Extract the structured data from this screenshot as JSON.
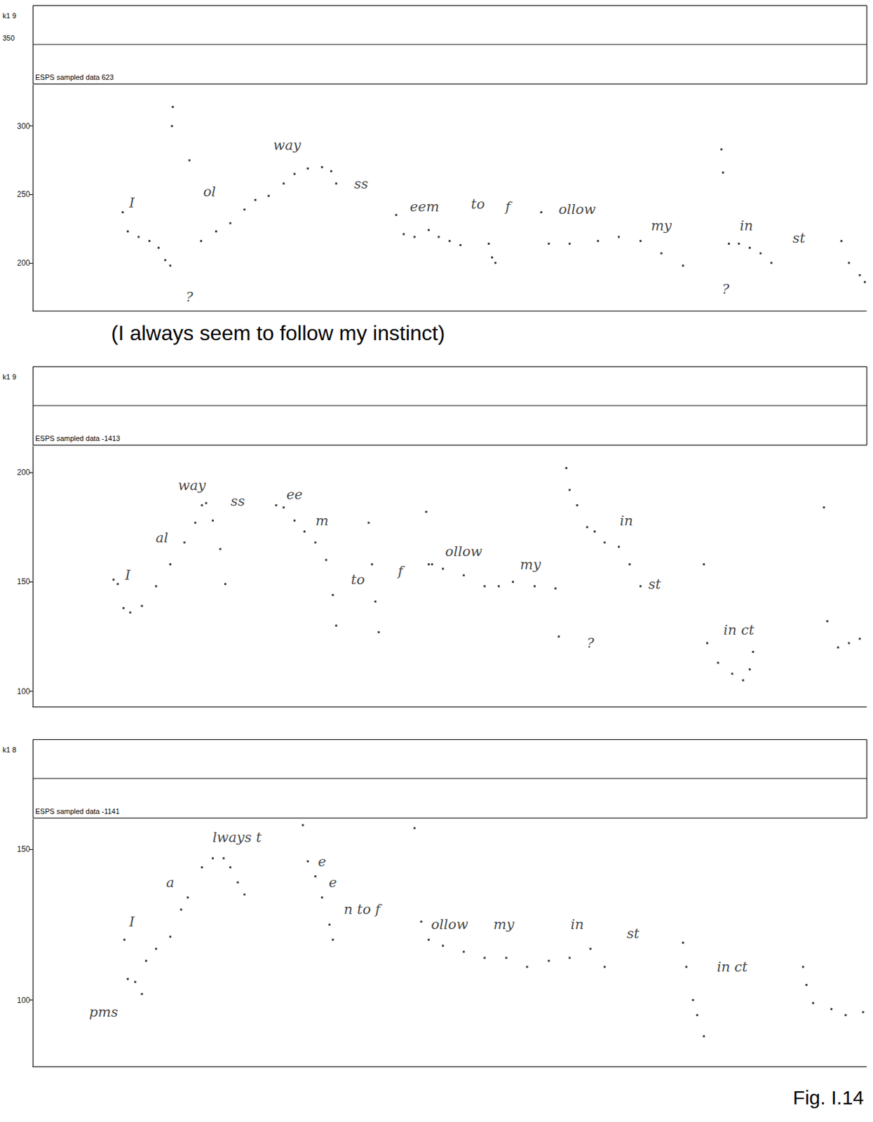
{
  "figure_label": "Fig. I.14",
  "chart_data": [
    {
      "type": "scatter",
      "waveform_label": "ESPS sampled data 623",
      "channel_label": "k1 9",
      "waveform_scale": 350,
      "caption": "(I always seem to follow my instinct)",
      "xlim": [
        0,
        100
      ],
      "ylim": [
        165,
        330
      ],
      "yticks": [
        200,
        250,
        300
      ],
      "tick_labels": "y",
      "grid": false,
      "marker": "square",
      "color": "#000000",
      "x": [
        10.8,
        11.4,
        12.7,
        14.0,
        15.1,
        15.9,
        16.5,
        16.7,
        16.8,
        18.8,
        20.2,
        22.0,
        23.7,
        25.4,
        26.7,
        28.3,
        30.1,
        31.4,
        33.0,
        34.7,
        35.8,
        36.4,
        43.6,
        44.5,
        45.8,
        47.5,
        48.7,
        50.0,
        51.3,
        54.7,
        55.1,
        55.5,
        61.0,
        61.9,
        64.4,
        67.8,
        70.3,
        72.9,
        75.4,
        78.0,
        82.6,
        82.8,
        83.5,
        84.7,
        86.0,
        87.3,
        88.6,
        97.0,
        97.9,
        99.2,
        99.8
      ],
      "values": [
        237,
        223,
        219,
        216,
        211,
        202,
        198,
        300,
        314,
        275,
        216,
        223,
        229,
        239,
        246,
        249,
        258,
        265,
        269,
        270,
        267,
        258,
        235,
        221,
        219,
        224,
        219,
        216,
        213,
        214,
        204,
        200,
        237,
        214,
        214,
        216,
        219,
        216,
        207,
        198,
        283,
        266,
        214,
        214,
        211,
        207,
        200,
        216,
        200,
        191,
        186
      ],
      "annotations": [
        {
          "text": "I",
          "x": 11.9,
          "y": 244
        },
        {
          "text": "?",
          "x": 18.8,
          "y": 175
        },
        {
          "text": "ol",
          "x": 21.2,
          "y": 252
        },
        {
          "text": "way",
          "x": 30.5,
          "y": 286
        },
        {
          "text": "ss",
          "x": 39.4,
          "y": 258
        },
        {
          "text": "eem",
          "x": 47.0,
          "y": 241
        },
        {
          "text": "to",
          "x": 53.4,
          "y": 243
        },
        {
          "text": "f",
          "x": 57.0,
          "y": 241
        },
        {
          "text": "ollow",
          "x": 65.3,
          "y": 239
        },
        {
          "text": "my",
          "x": 75.4,
          "y": 227
        },
        {
          "text": "?",
          "x": 83.1,
          "y": 181
        },
        {
          "text": "in",
          "x": 85.6,
          "y": 227
        },
        {
          "text": "st",
          "x": 91.9,
          "y": 218
        }
      ]
    },
    {
      "type": "scatter",
      "waveform_label": "ESPS sampled data -1413",
      "channel_label": "k1 9",
      "xlim": [
        0,
        100
      ],
      "ylim": [
        93,
        212
      ],
      "yticks": [
        100,
        150,
        200
      ],
      "tick_labels": "y",
      "grid": false,
      "marker": "square",
      "color": "#000000",
      "x": [
        9.7,
        10.2,
        10.9,
        11.7,
        13.1,
        14.8,
        16.5,
        18.2,
        19.5,
        20.3,
        20.8,
        21.6,
        22.5,
        23.1,
        29.2,
        30.1,
        31.4,
        32.6,
        33.9,
        35.2,
        36.0,
        36.4,
        40.3,
        40.7,
        41.1,
        41.5,
        47.2,
        47.5,
        47.9,
        49.2,
        51.7,
        54.2,
        55.9,
        57.6,
        60.2,
        62.7,
        63.1,
        64.0,
        64.4,
        65.3,
        66.5,
        67.4,
        68.6,
        70.3,
        71.6,
        72.9,
        80.5,
        80.9,
        82.2,
        83.9,
        85.2,
        86.0,
        86.4,
        94.9,
        95.3,
        96.6,
        97.9,
        99.2
      ],
      "values": [
        151,
        149,
        138,
        136,
        139,
        148,
        158,
        168,
        177,
        185,
        186,
        178,
        165,
        149,
        185,
        184,
        178,
        173,
        168,
        160,
        144,
        130,
        177,
        158,
        141,
        127,
        182,
        158,
        158,
        156,
        153,
        148,
        148,
        150,
        148,
        147,
        125,
        202,
        192,
        185,
        175,
        173,
        168,
        166,
        158,
        148,
        158,
        122,
        113,
        108,
        105,
        110,
        118,
        184,
        132,
        120,
        122,
        124
      ],
      "annotations": [
        {
          "text": "I",
          "x": 11.4,
          "y": 153
        },
        {
          "text": "al",
          "x": 15.5,
          "y": 170
        },
        {
          "text": "way",
          "x": 19.1,
          "y": 194
        },
        {
          "text": "ss",
          "x": 24.6,
          "y": 187
        },
        {
          "text": "ee",
          "x": 31.4,
          "y": 190
        },
        {
          "text": "m",
          "x": 34.7,
          "y": 178
        },
        {
          "text": "to",
          "x": 39.0,
          "y": 151
        },
        {
          "text": "f",
          "x": 44.1,
          "y": 155
        },
        {
          "text": "ollow",
          "x": 51.7,
          "y": 164
        },
        {
          "text": "my",
          "x": 59.7,
          "y": 158
        },
        {
          "text": "in",
          "x": 71.2,
          "y": 178
        },
        {
          "text": "st",
          "x": 74.6,
          "y": 149
        },
        {
          "text": "?",
          "x": 66.9,
          "y": 122
        },
        {
          "text": "in ct",
          "x": 84.7,
          "y": 128
        }
      ]
    },
    {
      "type": "scatter",
      "waveform_label": "ESPS sampled data -1141",
      "channel_label": "k1 8",
      "xlim": [
        0,
        100
      ],
      "ylim": [
        78,
        160
      ],
      "yticks": [
        100,
        150
      ],
      "tick_labels": "y",
      "grid": false,
      "marker": "square",
      "color": "#000000",
      "x": [
        11.0,
        11.4,
        12.3,
        13.1,
        13.6,
        14.8,
        16.5,
        17.8,
        18.6,
        20.3,
        21.6,
        22.9,
        23.7,
        24.6,
        25.4,
        32.4,
        45.8,
        33.0,
        33.9,
        34.7,
        35.6,
        36.0,
        46.6,
        47.5,
        49.2,
        51.7,
        54.2,
        56.8,
        59.3,
        61.9,
        64.4,
        66.9,
        68.6,
        78.0,
        78.4,
        79.2,
        79.7,
        80.5,
        92.4,
        92.8,
        93.6,
        95.8,
        97.5,
        99.6
      ],
      "values": [
        120,
        107,
        106,
        102,
        113,
        117,
        121,
        130,
        134,
        144,
        147,
        147,
        144,
        139,
        135,
        158,
        157,
        146,
        141,
        134,
        125,
        120,
        126,
        120,
        118,
        116,
        114,
        114,
        111,
        113,
        114,
        117,
        111,
        119,
        111,
        100,
        95,
        88,
        111,
        105,
        99,
        97,
        95,
        96
      ],
      "annotations": [
        {
          "text": "I",
          "x": 11.9,
          "y": 126
        },
        {
          "text": "a",
          "x": 16.5,
          "y": 139
        },
        {
          "text": "lways t",
          "x": 24.5,
          "y": 154
        },
        {
          "text": "e",
          "x": 34.7,
          "y": 146
        },
        {
          "text": "e",
          "x": 36.0,
          "y": 139
        },
        {
          "text": "n to f",
          "x": 39.5,
          "y": 130
        },
        {
          "text": "ollow",
          "x": 50.0,
          "y": 125
        },
        {
          "text": "my",
          "x": 56.5,
          "y": 125
        },
        {
          "text": "in",
          "x": 65.3,
          "y": 125
        },
        {
          "text": "st",
          "x": 72.0,
          "y": 122
        },
        {
          "text": "in ct",
          "x": 83.9,
          "y": 111
        },
        {
          "text": "pms",
          "x": 8.5,
          "y": 96
        }
      ]
    }
  ]
}
